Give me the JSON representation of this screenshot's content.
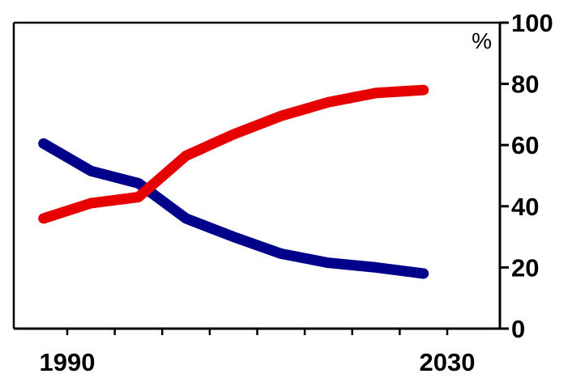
{
  "chart_data": {
    "type": "line",
    "title": "",
    "xlabel": "",
    "ylabel": "",
    "y_unit": "%",
    "x_tick_labels": [
      "1990",
      "2030"
    ],
    "y_ticks": [
      "0",
      "20",
      "40",
      "60",
      "80",
      "100"
    ],
    "xlim": [
      1990,
      2030
    ],
    "ylim": [
      0,
      100
    ],
    "x_minor_ticks": [
      1990,
      1995,
      2000,
      2005,
      2010,
      2015,
      2020,
      2025,
      2030
    ],
    "y_axis_side": "right",
    "grid": false,
    "legend": "none",
    "x": [
      1987.5,
      1992.5,
      1997.5,
      2002.5,
      2007.5,
      2012.5,
      2017.5,
      2022.5,
      2027.5
    ],
    "series": [
      {
        "color": "#00008B",
        "values": [
          60.5,
          51.5,
          47.5,
          36,
          30,
          24.5,
          21.5,
          20,
          18
        ]
      },
      {
        "color": "#E60000",
        "values": [
          36,
          41,
          43,
          56.5,
          63.5,
          69.5,
          74,
          77,
          78
        ]
      }
    ]
  }
}
